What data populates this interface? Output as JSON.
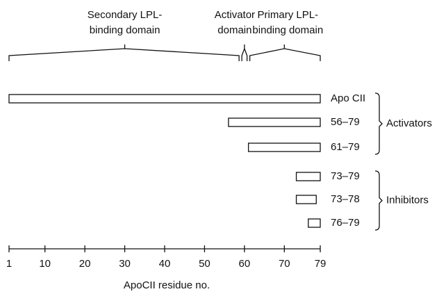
{
  "chart_data": {
    "type": "range",
    "xlabel": "ApoCII residue no.",
    "xlim": [
      1,
      79
    ],
    "xticks": [
      1,
      10,
      20,
      30,
      40,
      50,
      60,
      70,
      79
    ],
    "domains": [
      {
        "label": [
          "Secondary LPL-",
          "binding domain"
        ],
        "start": 1,
        "end": 59
      },
      {
        "label": [
          "Activator",
          "domain"
        ],
        "start": 59,
        "end": 61
      },
      {
        "label": [
          "Primary LPL-",
          "binding domain"
        ],
        "start": 61,
        "end": 79
      }
    ],
    "groups": [
      {
        "label": "Activators",
        "segments": [
          {
            "label": "Apo CII",
            "start": 1,
            "end": 79
          },
          {
            "label": "56–79",
            "start": 56,
            "end": 79
          },
          {
            "label": "61–79",
            "start": 61,
            "end": 79
          }
        ]
      },
      {
        "label": "Inhibitors",
        "segments": [
          {
            "label": "73–79",
            "start": 73,
            "end": 79
          },
          {
            "label": "73–78",
            "start": 73,
            "end": 78
          },
          {
            "label": "76–79",
            "start": 76,
            "end": 79
          }
        ]
      }
    ]
  }
}
